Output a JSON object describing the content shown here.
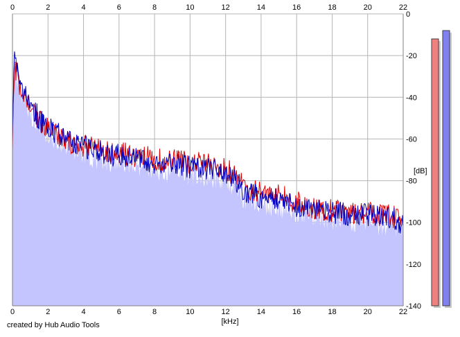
{
  "chart_data": {
    "type": "area",
    "xlabel": "[kHz]",
    "ylabel": "[dB]",
    "xlim": [
      0,
      22
    ],
    "ylim": [
      -140,
      0
    ],
    "x_ticks": [
      "0",
      "2",
      "4",
      "6",
      "8",
      "10",
      "12",
      "14",
      "16",
      "18",
      "20",
      "22"
    ],
    "y_ticks": [
      "0",
      "-20",
      "-40",
      "-60",
      "-80",
      "-100",
      "-120",
      "-140"
    ],
    "grid": true,
    "series": [
      {
        "color": "#e00000",
        "x": [
          0,
          0.1,
          0.3,
          0.5,
          0.8,
          1.0,
          1.3,
          1.6,
          2.0,
          2.5,
          3.0,
          3.5,
          4.0,
          4.5,
          5.0,
          5.5,
          6.0,
          6.5,
          7.0,
          7.5,
          8.0,
          8.5,
          9.0,
          9.5,
          10.0,
          10.5,
          11.0,
          11.5,
          12.0,
          12.5,
          13.0,
          13.5,
          14.0,
          14.5,
          15.0,
          15.5,
          16.0,
          16.5,
          17.0,
          17.5,
          18.0,
          18.5,
          19.0,
          19.5,
          20.0,
          20.5,
          21.0,
          21.5,
          22.0
        ],
        "y": [
          -62,
          -25,
          -30,
          -38,
          -40,
          -45,
          -48,
          -52,
          -55,
          -58,
          -60,
          -62,
          -63,
          -64,
          -65,
          -67,
          -66,
          -67,
          -68,
          -68,
          -69,
          -70,
          -70,
          -70,
          -71,
          -71,
          -72,
          -73,
          -74,
          -77,
          -82,
          -84,
          -86,
          -86,
          -87,
          -88,
          -90,
          -92,
          -93,
          -93,
          -94,
          -94,
          -95,
          -95,
          -95,
          -96,
          -96,
          -97,
          -98
        ]
      },
      {
        "color": "#0000c0",
        "x": [
          0,
          0.1,
          0.3,
          0.5,
          0.8,
          1.0,
          1.3,
          1.6,
          2.0,
          2.5,
          3.0,
          3.5,
          4.0,
          4.5,
          5.0,
          5.5,
          6.0,
          6.5,
          7.0,
          7.5,
          8.0,
          8.5,
          9.0,
          9.5,
          10.0,
          10.5,
          11.0,
          11.5,
          12.0,
          12.5,
          13.0,
          13.5,
          14.0,
          14.5,
          15.0,
          15.5,
          16.0,
          16.5,
          17.0,
          17.5,
          18.0,
          18.5,
          19.0,
          19.5,
          20.0,
          20.5,
          21.0,
          21.5,
          22.0
        ],
        "y": [
          -55,
          -22,
          -28,
          -36,
          -39,
          -44,
          -47,
          -51,
          -54,
          -57,
          -59,
          -61,
          -63,
          -65,
          -66,
          -68,
          -67,
          -68,
          -69,
          -70,
          -71,
          -72,
          -71,
          -72,
          -73,
          -73,
          -74,
          -75,
          -77,
          -79,
          -84,
          -86,
          -88,
          -88,
          -89,
          -90,
          -92,
          -93,
          -94,
          -94,
          -95,
          -95,
          -96,
          -96,
          -96,
          -97,
          -97,
          -98,
          -100
        ]
      }
    ],
    "level_meters": [
      {
        "color": "#f08080",
        "value_db": -12
      },
      {
        "color": "#8080f0",
        "value_db": -8
      }
    ]
  },
  "footer": {
    "credit": "created by Hub Audio Tools"
  },
  "colors": {
    "fill": "#c4c4ff",
    "grid": "#b4b4b4",
    "axis": "#808080"
  }
}
